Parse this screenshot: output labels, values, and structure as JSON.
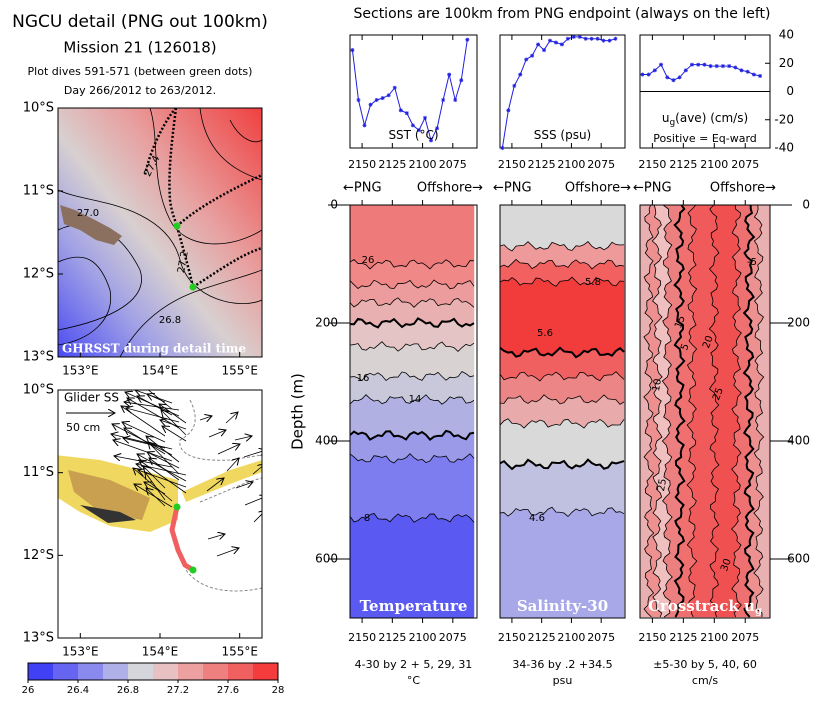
{
  "header": {
    "title": "NGCU detail (PNG out 100km)",
    "mission": "Mission 21 (126018)",
    "dives": "Plot dives 591-571 (between green dots)",
    "days": "Day 266/2012 to 263/2012.",
    "note": "Sections are 100km from PNG endpoint (always on the left)"
  },
  "chart_data": [
    {
      "type": "map",
      "label": "GHRSST during detail time",
      "xlim": [
        152.72,
        155.28
      ],
      "ylim": [
        -13,
        -10
      ],
      "xticks": [
        {
          "value": 153,
          "label": "153°E"
        },
        {
          "value": 154,
          "label": "154°E"
        },
        {
          "value": 155,
          "label": "155°E"
        }
      ],
      "yticks": [
        {
          "value": -10,
          "label": "10°S"
        },
        {
          "value": -11,
          "label": "11°S"
        },
        {
          "value": -12,
          "label": "12°S"
        },
        {
          "value": -13,
          "label": "13°S"
        }
      ],
      "annotations": [
        "27.0",
        "27.4",
        "27.2",
        "26.8"
      ]
    },
    {
      "type": "map",
      "label": "Glider SS",
      "scale_label": "50 cm",
      "xlim": [
        152.72,
        155.28
      ],
      "ylim": [
        -13,
        -10
      ],
      "xticks": [
        {
          "value": 153,
          "label": "153°E"
        },
        {
          "value": 154,
          "label": "154°E"
        },
        {
          "value": 155,
          "label": "155°E"
        }
      ],
      "yticks": [
        {
          "value": -10,
          "label": "10°S"
        },
        {
          "value": -11,
          "label": "11°S"
        },
        {
          "value": -12,
          "label": "12°S"
        },
        {
          "value": -13,
          "label": "13°S"
        }
      ]
    },
    {
      "type": "colorbar",
      "clim": [
        26,
        28
      ],
      "ticks": [
        26,
        26.4,
        26.8,
        27.2,
        27.6,
        28
      ],
      "colors": [
        "#4040f5",
        "#6565f2",
        "#8a8aee",
        "#b0b0e8",
        "#d5d5dc",
        "#e8c2c2",
        "#eca0a0",
        "#ee8080",
        "#f06060",
        "#f53c3c"
      ]
    },
    {
      "type": "line",
      "title": "SST (°C)",
      "color": "#2020e0",
      "xlim": [
        2160,
        2055
      ],
      "xticks": [
        2150,
        2125,
        2100,
        2075
      ],
      "ylim": [
        29.0,
        30.2
      ],
      "x": [
        2158,
        2153,
        2148,
        2143,
        2138,
        2133,
        2128,
        2123,
        2118,
        2113,
        2108,
        2103,
        2098,
        2093,
        2088,
        2083,
        2078,
        2073,
        2068,
        2063
      ],
      "values": [
        30.04,
        29.51,
        29.24,
        29.46,
        29.51,
        29.53,
        29.56,
        29.64,
        29.4,
        29.37,
        29.24,
        29.19,
        29.32,
        29.08,
        29.21,
        29.51,
        29.78,
        29.51,
        29.72,
        30.15
      ]
    },
    {
      "type": "line",
      "title": "SSS (psu)",
      "color": "#2020e0",
      "xlim": [
        2160,
        2055
      ],
      "xticks": [
        2150,
        2125,
        2100,
        2075
      ],
      "ylim": [
        34.0,
        34.6
      ],
      "x": [
        2158,
        2153,
        2148,
        2143,
        2138,
        2133,
        2128,
        2123,
        2118,
        2113,
        2108,
        2103,
        2098,
        2093,
        2088,
        2083,
        2078,
        2073,
        2068,
        2063
      ],
      "values": [
        34.0,
        34.2,
        34.33,
        34.39,
        34.47,
        34.49,
        34.55,
        34.52,
        34.57,
        34.56,
        34.55,
        34.58,
        34.59,
        34.59,
        34.58,
        34.58,
        34.58,
        34.57,
        34.57,
        34.58
      ]
    },
    {
      "type": "line",
      "title": "u",
      "title_sub": "g",
      "title_rest": "(ave) (cm/s)",
      "note": "Positive = Eq-ward",
      "color": "#2020e0",
      "xlim": [
        2160,
        2055
      ],
      "xticks": [
        2150,
        2125,
        2100,
        2075
      ],
      "ylim": [
        -40,
        40
      ],
      "yticks": [
        40,
        20,
        0,
        -20,
        -40
      ],
      "y_axis_side": "right",
      "zero_line": true,
      "x": [
        2158,
        2153,
        2148,
        2143,
        2138,
        2133,
        2128,
        2123,
        2118,
        2113,
        2108,
        2103,
        2098,
        2093,
        2088,
        2083,
        2078,
        2073,
        2068,
        2063
      ],
      "values": [
        12,
        12,
        15,
        19,
        10,
        8,
        10,
        15,
        19,
        19,
        19,
        18,
        18,
        18,
        18,
        17,
        15,
        14,
        12,
        11
      ]
    },
    {
      "type": "section",
      "orientation": "horizontal",
      "header_left": "←PNG",
      "header_right": "Offshore→",
      "ylabel": "Depth (m)",
      "label": "Temperature",
      "xlim": [
        2160,
        2055
      ],
      "xticks": [
        2150,
        2125,
        2100,
        2075
      ],
      "ylim": [
        0,
        700
      ],
      "yticks": [
        0,
        200,
        400,
        600
      ],
      "y_axis_side": "left",
      "band_edges": [
        0,
        100,
        135,
        165,
        200,
        240,
        290,
        330,
        390,
        430,
        530,
        700
      ],
      "band_colors": [
        "#ee7a7a",
        "#f08888",
        "#ec9c9c",
        "#e8b0b0",
        "#e4c4c4",
        "#d8d2d2",
        "#c8c8da",
        "#b0b0e2",
        "#9a9ae8",
        "#7d7df0",
        "#5a5af2"
      ],
      "contour_labels": [
        "26",
        "16",
        "14",
        "8"
      ],
      "footer": [
        "4-30 by 2 + 5, 29, 31",
        "°C"
      ]
    },
    {
      "type": "section",
      "orientation": "horizontal",
      "header_left": "←PNG",
      "header_right": "Offshore→",
      "label": "Salinity-30",
      "xlim": [
        2160,
        2055
      ],
      "xticks": [
        2150,
        2125,
        2100,
        2075
      ],
      "ylim": [
        0,
        700
      ],
      "band_edges": [
        0,
        70,
        100,
        130,
        250,
        290,
        330,
        370,
        440,
        520,
        700
      ],
      "band_colors": [
        "#d9d9d9",
        "#ee9a9a",
        "#f26060",
        "#f23c3c",
        "#f06060",
        "#ec8585",
        "#e8aaaa",
        "#d9d9d9",
        "#c0c0e0",
        "#a8a8e8"
      ],
      "contour_labels": [
        "5.8",
        "5.6",
        "4.6"
      ],
      "footer": [
        "34-36 by .2 +34.5",
        "psu"
      ]
    },
    {
      "type": "section",
      "orientation": "vertical",
      "header_left": "←PNG",
      "header_right": "Offshore→",
      "label": "Crosstrack u",
      "label_sub": "g",
      "xlim": [
        2160,
        2055
      ],
      "xticks": [
        2150,
        2125,
        2100,
        2075
      ],
      "ylim": [
        0,
        700
      ],
      "yticks": [
        0,
        200,
        400,
        600
      ],
      "y_axis_side": "right",
      "band_edges": [
        2160,
        2153,
        2146,
        2138,
        2128,
        2118,
        2100,
        2082,
        2072,
        2064,
        2055
      ],
      "band_colors": [
        "#e8b0b0",
        "#ee9090",
        "#f0c0c0",
        "#ec8080",
        "#f07070",
        "#f05a5a",
        "#f05050",
        "#ee7070",
        "#ec9090",
        "#e8b0b0"
      ],
      "contour_labels": [
        "-5",
        "15",
        "20",
        "5",
        "10",
        "25",
        "25",
        "30"
      ],
      "footer": [
        "±5-30 by 5, 40, 60",
        "cm/s"
      ]
    }
  ]
}
